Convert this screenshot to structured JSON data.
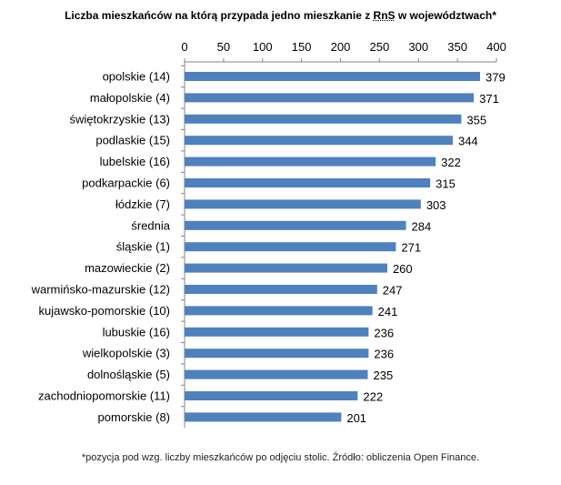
{
  "chart_data": {
    "type": "bar",
    "orientation": "horizontal",
    "title": "Liczba mieszkańców na którą przypada jedno mieszkanie z RnS w województwach*",
    "title_parts": [
      "Liczba mieszkańców na którą przypada jedno mieszkanie z ",
      "RnS",
      " w województwach*"
    ],
    "categories": [
      "opolskie (14)",
      "małopolskie (4)",
      "świętokrzyskie (13)",
      "podlaskie (15)",
      "lubelskie (16)",
      "podkarpackie (6)",
      "łódzkie (7)",
      "średnia",
      "śląskie (1)",
      "mazowieckie (2)",
      "warmińsko-mazurskie (12)",
      "kujawsko-pomorskie (10)",
      "lubuskie (16)",
      "wielkopolskie (3)",
      "dolnośląskie (5)",
      "zachodniopomorskie (11)",
      "pomorskie (8)"
    ],
    "values": [
      379,
      371,
      355,
      344,
      322,
      315,
      303,
      284,
      271,
      260,
      247,
      241,
      236,
      236,
      235,
      222,
      201
    ],
    "data_labels": [
      "379",
      "371",
      "355",
      "344",
      "322",
      "315",
      "303",
      "284",
      "271",
      "260",
      "247",
      "241",
      "236",
      "236",
      "235",
      "222",
      "201"
    ],
    "xlim": [
      0,
      400
    ],
    "ticks": [
      "0",
      "50",
      "100",
      "150",
      "200",
      "250",
      "300",
      "350",
      "400"
    ],
    "axis_position": "top",
    "grid": false,
    "bar_color": "#4f81bd",
    "footnote": "*pozycja pod wzg. liczby mieszkańców po odjęciu stolic. Źródło: obliczenia Open Finance."
  }
}
